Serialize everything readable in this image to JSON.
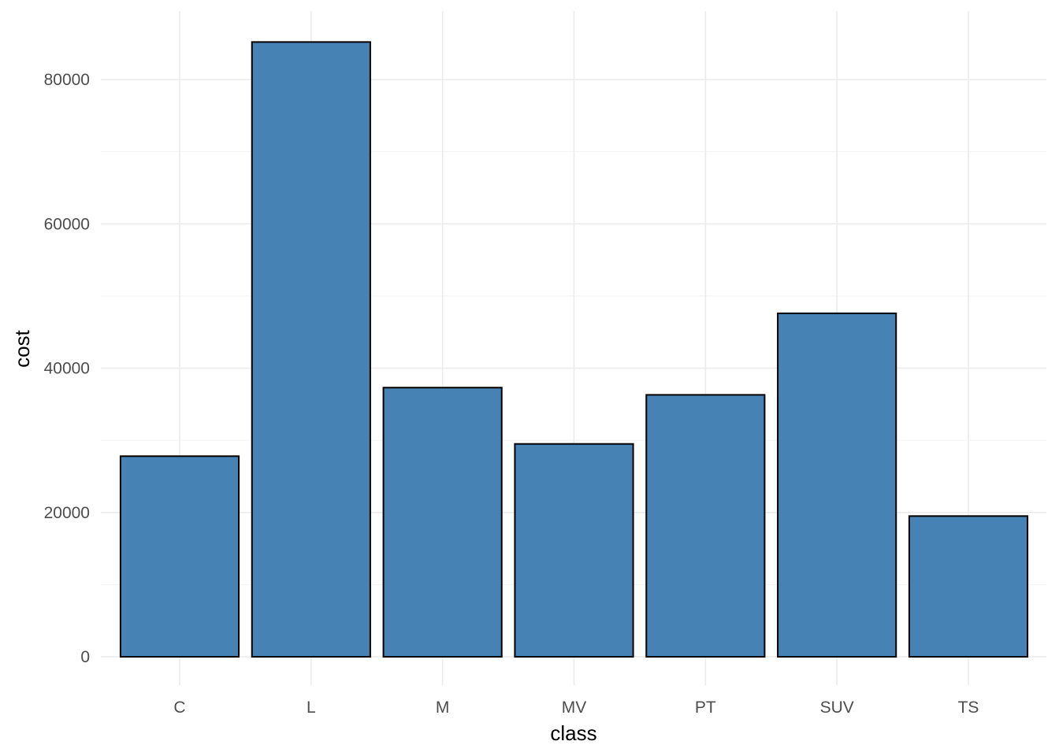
{
  "chart_data": {
    "type": "bar",
    "categories": [
      "C",
      "L",
      "M",
      "MV",
      "PT",
      "SUV",
      "TS"
    ],
    "values": [
      27800,
      85200,
      37300,
      29500,
      36300,
      47600,
      19500
    ],
    "xlabel": "class",
    "ylabel": "cost",
    "ylim": [
      0,
      87500
    ],
    "yticks": [
      0,
      20000,
      40000,
      60000,
      80000
    ],
    "y_minor_ticks": [
      10000,
      30000,
      50000,
      70000
    ],
    "grid": true,
    "legend": "none",
    "colors": {
      "bar_fill": "#4682b4",
      "bar_outline": "#000000"
    }
  }
}
